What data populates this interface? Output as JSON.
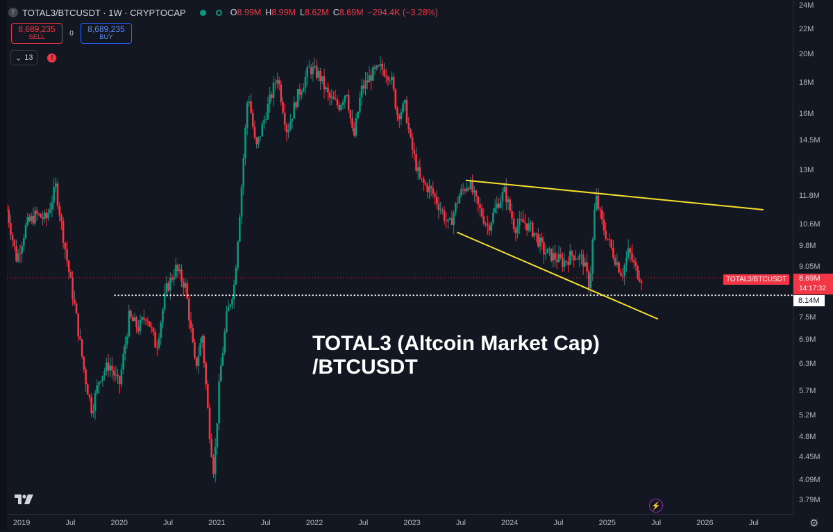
{
  "header": {
    "symbol_title": "TOTAL3/BTCUSDT · 1W · CRYPTOCAP",
    "symbol_icon": "T",
    "ohlc": [
      {
        "k": "O",
        "v": "8.99M"
      },
      {
        "k": "H",
        "v": "8.99M"
      },
      {
        "k": "L",
        "v": "8.62M"
      },
      {
        "k": "C",
        "v": "8.69M"
      },
      {
        "k": "",
        "v": "−294.4K (−3.28%)"
      }
    ]
  },
  "trade": {
    "sell_price": "8,689,235",
    "sell_label": "SELL",
    "spread": "0",
    "buy_price": "8,689,235",
    "buy_label": "BUY"
  },
  "indicators": {
    "count": "13",
    "warning_icon": "!"
  },
  "overlay": {
    "line1": "TOTAL3 (Altcoin Market Cap)",
    "line2": "/BTCUSDT"
  },
  "last_price": {
    "symbol": "TOTAL3/BTCUSDT",
    "value": "8.69M",
    "countdown": "14:17:32"
  },
  "support": {
    "value": "8.14M"
  },
  "colors": {
    "up": "#089981",
    "down": "#f23645",
    "trendline": "#f7e12b",
    "background": "#131722"
  },
  "chart_data": {
    "type": "candlestick",
    "title": "TOTAL3/BTCUSDT · 1W · CRYPTOCAP",
    "scale": "log",
    "ylim": [
      3.6,
      24.5
    ],
    "y_tick_labels": [
      "24M",
      "22M",
      "20M",
      "18M",
      "16M",
      "14.5M",
      "13M",
      "11.8M",
      "10.6M",
      "9.8M",
      "9.05M",
      "7.5M",
      "6.9M",
      "6.3M",
      "5.7M",
      "5.2M",
      "4.8M",
      "4.45M",
      "4.09M",
      "3.79M"
    ],
    "y_tick_values": [
      24,
      22,
      20,
      18,
      16,
      14.5,
      13,
      11.8,
      10.6,
      9.8,
      9.05,
      7.5,
      6.9,
      6.3,
      5.7,
      5.2,
      4.8,
      4.45,
      4.09,
      3.79
    ],
    "x_tick_labels": [
      "2019",
      "Jul",
      "2020",
      "Jul",
      "2021",
      "Jul",
      "2022",
      "Jul",
      "2023",
      "Jul",
      "2024",
      "Jul",
      "2025",
      "Jul",
      "2026",
      "Jul"
    ],
    "x_tick_values": [
      2019.0,
      2019.5,
      2020.0,
      2020.5,
      2021.0,
      2021.5,
      2022.0,
      2022.5,
      2023.0,
      2023.5,
      2024.0,
      2024.5,
      2025.0,
      2025.5,
      2026.0,
      2026.5
    ],
    "xlim": [
      2018.85,
      2026.9
    ],
    "close_path": [
      [
        2018.85,
        11.2
      ],
      [
        2018.95,
        9.3
      ],
      [
        2019.05,
        10.6
      ],
      [
        2019.15,
        11.0
      ],
      [
        2019.25,
        10.8
      ],
      [
        2019.35,
        12.2
      ],
      [
        2019.45,
        9.6
      ],
      [
        2019.55,
        7.7
      ],
      [
        2019.65,
        6.0
      ],
      [
        2019.72,
        5.3
      ],
      [
        2019.8,
        6.0
      ],
      [
        2019.9,
        6.3
      ],
      [
        2020.0,
        5.8
      ],
      [
        2020.1,
        7.5
      ],
      [
        2020.2,
        7.2
      ],
      [
        2020.28,
        7.6
      ],
      [
        2020.38,
        6.7
      ],
      [
        2020.48,
        8.3
      ],
      [
        2020.58,
        9.0
      ],
      [
        2020.68,
        8.4
      ],
      [
        2020.78,
        6.2
      ],
      [
        2020.85,
        7.0
      ],
      [
        2020.92,
        5.0
      ],
      [
        2020.97,
        4.2
      ],
      [
        2021.03,
        6.0
      ],
      [
        2021.1,
        7.5
      ],
      [
        2021.18,
        8.5
      ],
      [
        2021.25,
        12.0
      ],
      [
        2021.32,
        17.5
      ],
      [
        2021.4,
        14.0
      ],
      [
        2021.5,
        16.0
      ],
      [
        2021.62,
        18.5
      ],
      [
        2021.72,
        15.0
      ],
      [
        2021.82,
        17.0
      ],
      [
        2021.95,
        19.0
      ],
      [
        2022.05,
        18.5
      ],
      [
        2022.15,
        17.0
      ],
      [
        2022.25,
        16.5
      ],
      [
        2022.33,
        17.5
      ],
      [
        2022.4,
        14.5
      ],
      [
        2022.48,
        17.5
      ],
      [
        2022.58,
        18.5
      ],
      [
        2022.68,
        19.0
      ],
      [
        2022.78,
        18.5
      ],
      [
        2022.85,
        16.0
      ],
      [
        2022.93,
        16.5
      ],
      [
        2022.98,
        14.5
      ],
      [
        2023.08,
        12.5
      ],
      [
        2023.2,
        12.0
      ],
      [
        2023.3,
        11.2
      ],
      [
        2023.38,
        10.5
      ],
      [
        2023.48,
        11.8
      ],
      [
        2023.58,
        12.4
      ],
      [
        2023.68,
        11.3
      ],
      [
        2023.78,
        10.5
      ],
      [
        2023.88,
        11.5
      ],
      [
        2023.95,
        12.0
      ],
      [
        2024.05,
        10.5
      ],
      [
        2024.15,
        10.7
      ],
      [
        2024.25,
        10.3
      ],
      [
        2024.35,
        9.6
      ],
      [
        2024.45,
        9.4
      ],
      [
        2024.55,
        9.2
      ],
      [
        2024.65,
        9.5
      ],
      [
        2024.75,
        9.3
      ],
      [
        2024.82,
        8.4
      ],
      [
        2024.88,
        11.8
      ],
      [
        2024.95,
        10.6
      ],
      [
        2025.05,
        9.6
      ],
      [
        2025.15,
        8.8
      ],
      [
        2025.22,
        9.6
      ],
      [
        2025.3,
        8.9
      ],
      [
        2025.35,
        8.69
      ]
    ],
    "trendlines": [
      {
        "name": "upper",
        "from": [
          2023.55,
          12.5
        ],
        "to": [
          2026.6,
          11.2
        ]
      },
      {
        "name": "lower",
        "from": [
          2023.46,
          10.3
        ],
        "to": [
          2025.52,
          7.45
        ]
      }
    ],
    "support_level": {
      "value": 8.14,
      "from_x": 2019.95,
      "label": "8.14M"
    },
    "last_price": 8.69
  }
}
